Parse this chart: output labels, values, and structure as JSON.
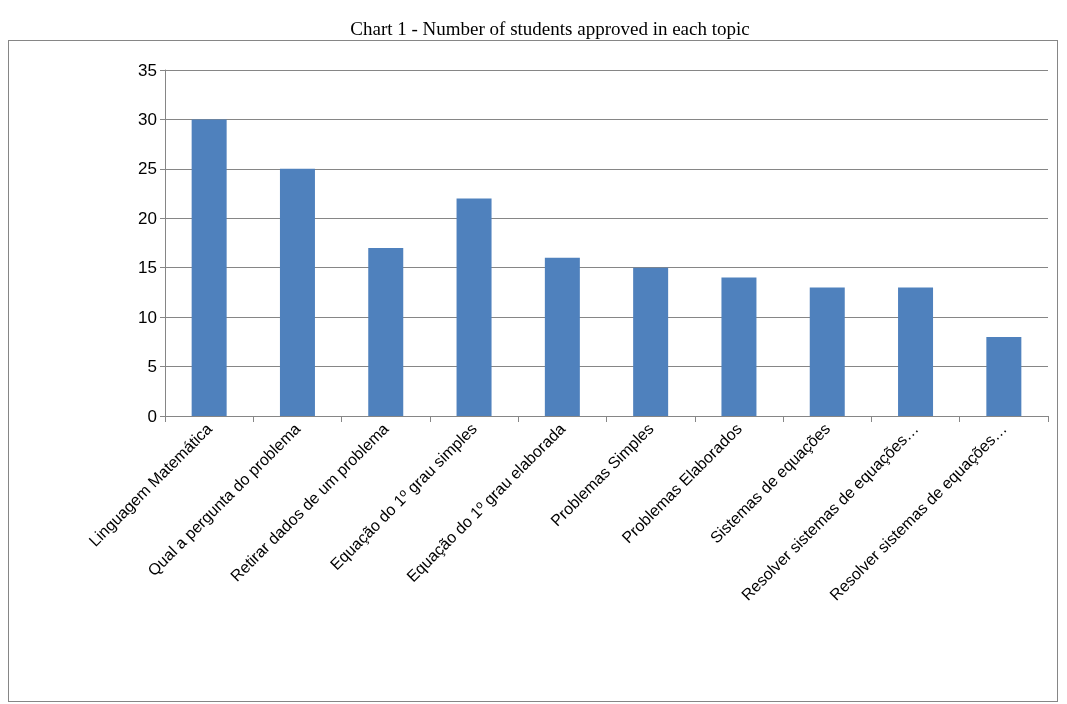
{
  "chart_data": {
    "type": "bar",
    "title": "Chart 1 - Number of students approved in each topic",
    "categories": [
      "Linguagem Matemática",
      "Qual a pergunta do problema",
      "Retirar dados de um problema",
      "Equação do 1º grau simples",
      "Equação do 1º grau elaborada",
      "Problemas Simples",
      "Problemas Elaborados",
      "Sistemas de equações",
      "Resolver sistemas de equações…",
      "Resolver sistemas de equações…"
    ],
    "values": [
      30,
      25,
      17,
      22,
      16,
      15,
      14,
      13,
      13,
      8
    ],
    "color": "#4f81bd",
    "ylim": [
      0,
      35
    ],
    "yticks": [
      0,
      5,
      10,
      15,
      20,
      25,
      30,
      35
    ],
    "grid": "y"
  }
}
